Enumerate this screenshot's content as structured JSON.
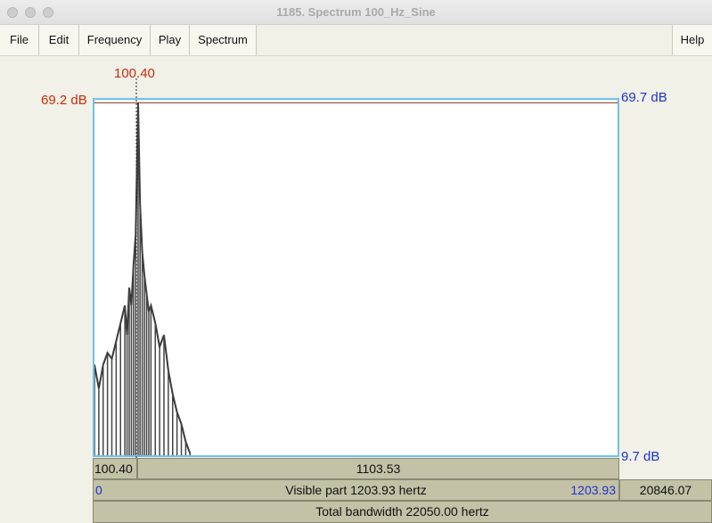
{
  "window": {
    "title": "1185. Spectrum 100_Hz_Sine"
  },
  "menu": {
    "file": "File",
    "edit": "Edit",
    "frequency": "Frequency",
    "play": "Play",
    "spectrum": "Spectrum",
    "help": "Help"
  },
  "cursor": {
    "frequency_top": "100.40",
    "level_left": "69.2 dB",
    "frequency_bottom": "100.40"
  },
  "axis": {
    "top_right": "69.7 dB",
    "bottom_right": "9.7 dB"
  },
  "bars": {
    "right_of_cursor": "1103.53",
    "visible_start": "0",
    "visible_label": "Visible part 1203.93 hertz",
    "visible_end": "1203.93",
    "remaining": "20846.07",
    "total_label": "Total bandwidth 22050.00 hertz"
  },
  "chart_data": {
    "type": "line",
    "xlabel": "",
    "ylabel": "",
    "xlim": [
      0,
      1203.93
    ],
    "ylim": [
      9.7,
      69.7
    ],
    "peak": {
      "x": 100.4,
      "y": 69.2
    },
    "series": [
      {
        "x": [
          0,
          10,
          20,
          30,
          40,
          50,
          60,
          70,
          75,
          80,
          85,
          90,
          95,
          100.4,
          105,
          110,
          115,
          120,
          125,
          130,
          140,
          150,
          160,
          170,
          180,
          190,
          200,
          210,
          220
        ],
        "y": [
          25.0,
          21.0,
          25.0,
          27.0,
          26.0,
          29.0,
          32.0,
          35.0,
          30.0,
          38.0,
          35.0,
          42.0,
          47.0,
          69.2,
          52.0,
          44.0,
          40.0,
          37.0,
          34.0,
          35.0,
          32.0,
          28.0,
          30.0,
          24.0,
          20.0,
          17.0,
          15.0,
          12.0,
          10.0
        ]
      }
    ]
  }
}
